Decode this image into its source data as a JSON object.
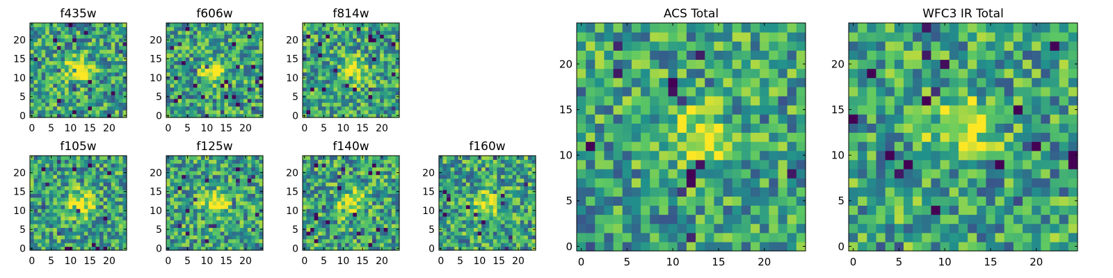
{
  "chart_data": [
    {
      "type": "heatmap",
      "title": "f435w",
      "x_ticks": [
        "0",
        "5",
        "10",
        "15",
        "20"
      ],
      "y_ticks": [
        "0",
        "5",
        "10",
        "15",
        "20"
      ],
      "xlim": [
        0,
        25
      ],
      "ylim": [
        0,
        25
      ],
      "bright_center": [
        12,
        12
      ],
      "colormap": "viridis"
    },
    {
      "type": "heatmap",
      "title": "f606w",
      "x_ticks": [
        "0",
        "5",
        "10",
        "15",
        "20"
      ],
      "y_ticks": [
        "0",
        "5",
        "10",
        "15",
        "20"
      ],
      "xlim": [
        0,
        25
      ],
      "ylim": [
        0,
        25
      ],
      "bright_center": [
        12,
        12
      ],
      "colormap": "viridis"
    },
    {
      "type": "heatmap",
      "title": "f814w",
      "x_ticks": [
        "0",
        "5",
        "10",
        "15",
        "20"
      ],
      "y_ticks": [
        "0",
        "5",
        "10",
        "15",
        "20"
      ],
      "xlim": [
        0,
        25
      ],
      "ylim": [
        0,
        25
      ],
      "bright_center": [
        13,
        12
      ],
      "colormap": "viridis"
    },
    {
      "type": "heatmap",
      "title": "f105w",
      "x_ticks": [
        "0",
        "5",
        "10",
        "15",
        "20"
      ],
      "y_ticks": [
        "0",
        "5",
        "10",
        "15",
        "20"
      ],
      "xlim": [
        0,
        25
      ],
      "ylim": [
        0,
        25
      ],
      "bright_center": [
        13,
        12
      ],
      "colormap": "viridis"
    },
    {
      "type": "heatmap",
      "title": "f125w",
      "x_ticks": [
        "0",
        "5",
        "10",
        "15",
        "20"
      ],
      "y_ticks": [
        "0",
        "5",
        "10",
        "15",
        "20"
      ],
      "xlim": [
        0,
        25
      ],
      "ylim": [
        0,
        25
      ],
      "bright_center": [
        12,
        12
      ],
      "colormap": "viridis"
    },
    {
      "type": "heatmap",
      "title": "f140w",
      "x_ticks": [
        "0",
        "5",
        "10",
        "15",
        "20"
      ],
      "y_ticks": [
        "0",
        "5",
        "10",
        "15",
        "20"
      ],
      "xlim": [
        0,
        25
      ],
      "ylim": [
        0,
        25
      ],
      "bright_center": [
        12,
        12
      ],
      "colormap": "viridis"
    },
    {
      "type": "heatmap",
      "title": "f160w",
      "x_ticks": [
        "0",
        "5",
        "10",
        "15",
        "20"
      ],
      "y_ticks": [
        "0",
        "5",
        "10",
        "15",
        "20"
      ],
      "xlim": [
        0,
        25
      ],
      "ylim": [
        0,
        25
      ],
      "bright_center": [
        12,
        12
      ],
      "colormap": "viridis"
    },
    {
      "type": "heatmap",
      "title": "ACS Total",
      "x_ticks": [
        "0",
        "5",
        "10",
        "15",
        "20"
      ],
      "y_ticks": [
        "0",
        "5",
        "10",
        "15",
        "20"
      ],
      "xlim": [
        0,
        25
      ],
      "ylim": [
        0,
        25
      ],
      "bright_center": [
        13,
        12
      ],
      "colormap": "viridis"
    },
    {
      "type": "heatmap",
      "title": "WFC3 IR Total",
      "x_ticks": [
        "0",
        "5",
        "10",
        "15",
        "20"
      ],
      "y_ticks": [
        "0",
        "5",
        "10",
        "15",
        "20"
      ],
      "xlim": [
        0,
        25
      ],
      "ylim": [
        0,
        25
      ],
      "bright_center": [
        12,
        13
      ],
      "colormap": "viridis"
    }
  ]
}
